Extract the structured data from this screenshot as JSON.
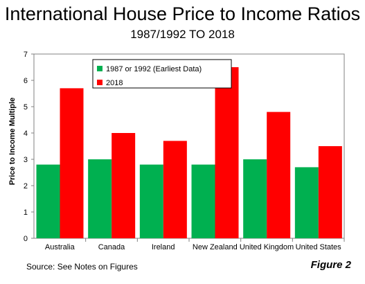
{
  "title": "International House Price to Income Ratios",
  "subtitle": "1987/1992 TO 2018",
  "source": "Source: See Notes on Figures",
  "figure_label": "Figure 2",
  "chart_data": {
    "type": "bar",
    "categories": [
      "Australia",
      "Canada",
      "Ireland",
      "New Zealand",
      "United Kingdom",
      "United States"
    ],
    "series": [
      {
        "name": "1987 or 1992 (Earliest Data)",
        "values": [
          2.8,
          3.0,
          2.8,
          2.8,
          3.0,
          2.7
        ],
        "color": "#00b050"
      },
      {
        "name": "2018",
        "values": [
          5.7,
          4.0,
          3.7,
          6.5,
          4.8,
          3.5
        ],
        "color": "#ff0000"
      }
    ],
    "ylabel": "Price to Income Multiple",
    "xlabel": "",
    "ylim": [
      0,
      7
    ],
    "yticks": [
      "0",
      "1",
      "2",
      "3",
      "4",
      "5",
      "6",
      "7"
    ],
    "grid": false,
    "legend_position": "top-left inside plot"
  }
}
